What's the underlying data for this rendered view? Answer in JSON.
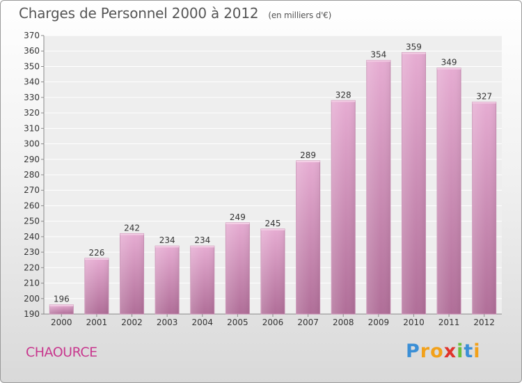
{
  "chart_data": {
    "type": "bar",
    "title": "Charges de Personnel 2000 à 2012",
    "subtitle": "(en milliers d'€)",
    "categories": [
      "2000",
      "2001",
      "2002",
      "2003",
      "2004",
      "2005",
      "2006",
      "2007",
      "2008",
      "2009",
      "2010",
      "2011",
      "2012"
    ],
    "values": [
      196,
      226,
      242,
      234,
      234,
      249,
      245,
      289,
      328,
      354,
      359,
      349,
      327
    ],
    "ylim": [
      190,
      370
    ],
    "ytick_step": 10,
    "xlabel": "",
    "ylabel": "",
    "grid": true,
    "bar_color": "#d9a0c4"
  },
  "commune": "CHAOURCE",
  "logo": {
    "letters": [
      "P",
      "r",
      "o",
      "x",
      "i",
      "t",
      "i"
    ],
    "colors": [
      "#3b8fd6",
      "#f2a11a",
      "#f2a11a",
      "#e0332b",
      "#6bbf3a",
      "#3b8fd6",
      "#f2a11a"
    ]
  }
}
